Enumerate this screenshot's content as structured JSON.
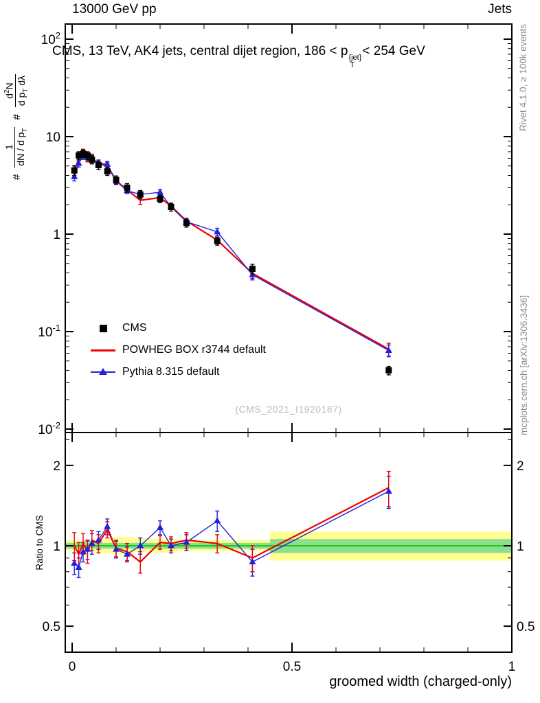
{
  "header": {
    "left": "13000 GeV pp",
    "right": "Jets"
  },
  "title": {
    "prefix": "CMS, 13 TeV, AK4 jets, central dijet region, 186 < p",
    "sup": "{jet}",
    "sub": "T",
    "suffix": "< 254 GeV"
  },
  "side_labels": {
    "rivet": "Rivet 4.1.0, ≥ 100k events",
    "mcplots": "mcplots.cern.ch [arXiv:1306.3436]"
  },
  "watermark": "(CMS_2021_I1920187)",
  "ylabel_main": {
    "hash1": "#",
    "frac1_num": "1",
    "frac1_den_pre": "dN / d p",
    "frac1_den_sub": "T",
    "hash2": "#",
    "frac2_num_pre": "d",
    "frac2_num_sup": "2",
    "frac2_num_post": "N",
    "frac2_den_pre": "d p",
    "frac2_den_sub": "T",
    "frac2_den_post": " dλ"
  },
  "ratio_ylabel": "Ratio to CMS",
  "xlabel": "groomed width (charged-only)",
  "legend": {
    "items": [
      {
        "label": "CMS"
      },
      {
        "label": "POWHEG BOX r3744 default"
      },
      {
        "label": "Pythia 8.315 default"
      }
    ]
  },
  "chart_data": {
    "type": "line",
    "title": "CMS, 13 TeV, AK4 jets, central dijet region, 186 < pT(jet) < 254 GeV",
    "xlabel": "groomed width (charged-only)",
    "ylabel": "1/(dN/dpT) d2N/(dpT dlambda)",
    "ratio_ylabel": "Ratio to CMS",
    "x": [
      0.005,
      0.015,
      0.025,
      0.035,
      0.045,
      0.06,
      0.08,
      0.1,
      0.125,
      0.155,
      0.2,
      0.225,
      0.26,
      0.33,
      0.41,
      0.72
    ],
    "series": [
      {
        "name": "CMS",
        "role": "reference-data",
        "marker": "square",
        "color": "#000000",
        "values": [
          4.5,
          6.4,
          6.7,
          6.4,
          5.8,
          5.1,
          4.4,
          3.6,
          3.0,
          2.55,
          2.3,
          1.9,
          1.3,
          0.85,
          0.44,
          0.04
        ],
        "errors": [
          0.5,
          0.6,
          0.6,
          0.6,
          0.55,
          0.5,
          0.4,
          0.35,
          0.3,
          0.25,
          0.2,
          0.18,
          0.12,
          0.08,
          0.05,
          0.004
        ]
      },
      {
        "name": "POWHEG BOX r3744 default",
        "role": "mc-prediction",
        "marker": "none",
        "color": "#ee0000",
        "ratio_to_cms": [
          1.0,
          0.93,
          1.02,
          0.95,
          1.05,
          1.02,
          1.15,
          0.98,
          0.95,
          0.87,
          1.03,
          1.02,
          1.05,
          1.02,
          0.9,
          1.65
        ],
        "ratio_errors": [
          0.12,
          0.1,
          0.09,
          0.09,
          0.09,
          0.08,
          0.08,
          0.07,
          0.07,
          0.08,
          0.06,
          0.06,
          0.07,
          0.08,
          0.1,
          0.25
        ]
      },
      {
        "name": "Pythia 8.315 default",
        "role": "mc-prediction",
        "marker": "triangle",
        "color": "#2222dd",
        "ratio_to_cms": [
          0.86,
          0.83,
          0.95,
          0.97,
          1.02,
          1.05,
          1.18,
          0.97,
          0.93,
          1.0,
          1.17,
          1.0,
          1.03,
          1.24,
          0.87,
          1.6
        ],
        "ratio_errors": [
          0.08,
          0.07,
          0.08,
          0.08,
          0.09,
          0.08,
          0.08,
          0.07,
          0.06,
          0.07,
          0.07,
          0.06,
          0.07,
          0.11,
          0.1,
          0.22
        ]
      }
    ],
    "ratio_bands": {
      "colors": {
        "yellow": "#ffff91",
        "green": "#8be08b",
        "centerline": "#00bb00"
      },
      "yellow": [
        {
          "x0": 0.0,
          "x1": 0.05,
          "lo": 0.955,
          "hi": 1.05
        },
        {
          "x0": 0.05,
          "x1": 0.09,
          "lo": 0.94,
          "hi": 1.06
        },
        {
          "x0": 0.09,
          "x1": 0.14,
          "lo": 0.93,
          "hi": 1.08
        },
        {
          "x0": 0.14,
          "x1": 0.18,
          "lo": 0.95,
          "hi": 1.07
        },
        {
          "x0": 0.18,
          "x1": 0.24,
          "lo": 0.94,
          "hi": 1.06
        },
        {
          "x0": 0.24,
          "x1": 0.45,
          "lo": 0.955,
          "hi": 1.05
        },
        {
          "x0": 0.45,
          "x1": 1.0,
          "lo": 0.88,
          "hi": 1.13
        }
      ],
      "green": [
        {
          "x0": 0.0,
          "x1": 0.45,
          "lo": 0.975,
          "hi": 1.025
        },
        {
          "x0": 0.45,
          "x1": 1.0,
          "lo": 0.94,
          "hi": 1.06
        }
      ]
    },
    "axes": {
      "x": {
        "range": [
          0,
          1
        ],
        "minor_step": 0.1,
        "ticks": [
          {
            "v": 0,
            "label": "0"
          },
          {
            "v": 0.5,
            "label": "0.5"
          },
          {
            "v": 1,
            "label": "1"
          }
        ]
      },
      "y_main": {
        "scale": "log",
        "range": [
          0.009,
          140
        ],
        "ticks": [
          {
            "v": 100,
            "base": "10",
            "exp": "2"
          },
          {
            "v": 10,
            "base": "10",
            "exp": ""
          },
          {
            "v": 1,
            "base": "1",
            "exp": ""
          },
          {
            "v": 0.1,
            "base": "10",
            "exp": "-1"
          },
          {
            "v": 0.01,
            "base": "10",
            "exp": "-2"
          }
        ]
      },
      "y_ratio": {
        "scale": "log",
        "range": [
          0.4,
          2.65
        ],
        "ticks": [
          {
            "v": 2,
            "label": "2"
          },
          {
            "v": 1,
            "label": "1"
          },
          {
            "v": 0.5,
            "label": "0.5"
          }
        ],
        "minor_ticks": [
          0.4,
          0.6,
          0.7,
          0.8,
          0.9,
          2.5
        ]
      }
    },
    "legend_position": "upper-left-inside"
  }
}
